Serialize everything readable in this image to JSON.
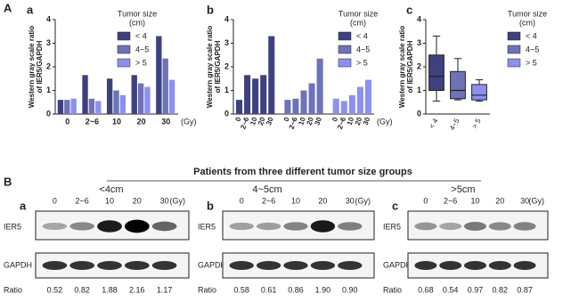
{
  "figure": {
    "panel": "A"
  },
  "chart_data": [
    {
      "type": "bar",
      "panel": "a",
      "ylabel": [
        "Western gray scale ratio",
        "of IER5/GAPDH"
      ],
      "xlabel": "(Gy)",
      "categories": [
        "0",
        "2~6",
        "10",
        "20",
        "30"
      ],
      "legend_title": [
        "Tumor size",
        "(cm)"
      ],
      "series": [
        {
          "name": "< 4",
          "color": "#3e4180",
          "values": [
            0.6,
            1.65,
            1.5,
            1.65,
            3.3
          ]
        },
        {
          "name": "4~5",
          "color": "#6e73b8",
          "values": [
            0.6,
            0.65,
            1.0,
            1.3,
            2.35
          ]
        },
        {
          "name": "> 5",
          "color": "#8c90f2",
          "values": [
            0.65,
            0.55,
            0.8,
            1.15,
            1.45
          ]
        }
      ],
      "ylim": [
        0,
        4
      ],
      "yticks": [
        0,
        1,
        2,
        3,
        4
      ]
    },
    {
      "type": "bar",
      "grouping": "series",
      "panel": "b",
      "ylabel": [
        "Western gray scale ratio",
        "of IER5/GAPDH"
      ],
      "xlabel": "(Gy)",
      "categories": [
        "0",
        "2~6",
        "10",
        "20",
        "30"
      ],
      "legend_title": [
        "Tumor size",
        "(cm)"
      ],
      "series": [
        {
          "name": "< 4",
          "color": "#3e4180",
          "values": [
            0.6,
            1.65,
            1.5,
            1.65,
            3.3
          ]
        },
        {
          "name": "4~5",
          "color": "#6e73b8",
          "values": [
            0.6,
            0.65,
            1.0,
            1.3,
            2.35
          ]
        },
        {
          "name": "> 5",
          "color": "#8c90f2",
          "values": [
            0.65,
            0.55,
            0.8,
            1.15,
            1.45
          ]
        }
      ],
      "ylim": [
        0,
        4
      ],
      "yticks": [
        0,
        1,
        2,
        3,
        4
      ]
    },
    {
      "type": "box",
      "panel": "c",
      "ylabel": [
        "Western gray scale ratio",
        "of IER5/GAPDH"
      ],
      "categories": [
        "< 4",
        "4~5",
        "> 5"
      ],
      "legend_title": [
        "Tumor size",
        "(cm)"
      ],
      "series": [
        {
          "name": "< 4",
          "color": "#3e4180",
          "box": {
            "min": 0.55,
            "q1": 1.0,
            "median": 1.6,
            "q3": 2.5,
            "max": 3.3
          }
        },
        {
          "name": "4~5",
          "color": "#6e73b8",
          "box": {
            "min": 0.6,
            "q1": 0.65,
            "median": 1.0,
            "q3": 1.8,
            "max": 2.35
          }
        },
        {
          "name": "> 5",
          "color": "#8c90f2",
          "box": {
            "min": 0.55,
            "q1": 0.6,
            "median": 0.8,
            "q3": 1.25,
            "max": 1.45
          }
        }
      ],
      "ylim": [
        0,
        4
      ],
      "yticks": [
        0,
        1,
        2,
        3,
        4
      ]
    }
  ],
  "blot": {
    "panel": "B",
    "title": "Patients from three different tumor size groups",
    "lanes": [
      "0",
      "2~6",
      "10",
      "20",
      "30"
    ],
    "unit": "(Gy)",
    "rows": [
      "IER5",
      "GAPDH",
      "Ratio"
    ],
    "groups": [
      {
        "panel": "a",
        "label": "<4cm",
        "values": [
          0.52,
          0.82,
          1.88,
          2.16,
          1.17
        ],
        "value_labels": [
          "0.52",
          "0.82",
          "1.88",
          "2.16",
          "1.17"
        ]
      },
      {
        "panel": "b",
        "label": "4~5cm",
        "values": [
          0.58,
          0.61,
          0.86,
          1.9,
          0.9
        ],
        "value_labels": [
          "0.58",
          "0.61",
          "0.86",
          "1.90",
          "0.90"
        ]
      },
      {
        "panel": "c",
        "label": ">5cm",
        "values": [
          0.68,
          0.54,
          0.97,
          0.82,
          0.87
        ],
        "value_labels": [
          "0.68",
          "0.54",
          "0.97",
          "0.82",
          "0.87"
        ]
      }
    ]
  }
}
